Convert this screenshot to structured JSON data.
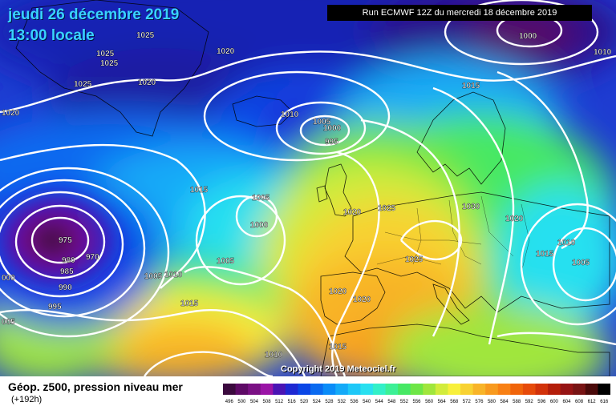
{
  "header": {
    "date": "jeudi 26 décembre 2019",
    "time": "13:00 locale",
    "run": "Run ECMWF 12Z du mercredi 18 décembre 2019"
  },
  "copyright": "Copyright 2019 Meteociel.fr",
  "legend": {
    "title": "Géop. z500, pression niveau mer",
    "subtitle": "(+192h)",
    "values": [
      "496",
      "500",
      "504",
      "508",
      "512",
      "516",
      "520",
      "524",
      "528",
      "532",
      "536",
      "540",
      "544",
      "548",
      "552",
      "556",
      "560",
      "564",
      "568",
      "572",
      "576",
      "580",
      "584",
      "588",
      "592",
      "596",
      "600",
      "604",
      "608",
      "612",
      "616"
    ],
    "colors": [
      "#3b0a3e",
      "#5e0a66",
      "#7a1084",
      "#9a14a6",
      "#4a14b4",
      "#1e28d2",
      "#0a46e6",
      "#0a6af0",
      "#0a8cf8",
      "#14aaf8",
      "#1ec8f8",
      "#28e0f0",
      "#32f0c8",
      "#3cf096",
      "#46e864",
      "#6ee646",
      "#a0e63c",
      "#d2ec3c",
      "#f8f03c",
      "#f8d232",
      "#f8b428",
      "#f89a1e",
      "#f88014",
      "#f0640a",
      "#e64a0a",
      "#d2320a",
      "#b41e0a",
      "#961414",
      "#781414",
      "#4a0a0a",
      "#000000"
    ]
  },
  "map_labels": [
    {
      "text": "1025"
    },
    {
      "text": "1025"
    },
    {
      "text": "1025"
    },
    {
      "text": "1025"
    },
    {
      "text": "1020"
    },
    {
      "text": "1020"
    },
    {
      "text": "1020"
    },
    {
      "text": "1000"
    },
    {
      "text": "1010"
    },
    {
      "text": "1015"
    },
    {
      "text": "1010"
    },
    {
      "text": "1005"
    },
    {
      "text": "1000"
    },
    {
      "text": "995"
    },
    {
      "text": "1015"
    },
    {
      "text": "1005"
    },
    {
      "text": "1000"
    },
    {
      "text": "1020"
    },
    {
      "text": "1025"
    },
    {
      "text": "1030"
    },
    {
      "text": "1020"
    },
    {
      "text": "975"
    },
    {
      "text": "970"
    },
    {
      "text": "980"
    },
    {
      "text": "985"
    },
    {
      "text": "990"
    },
    {
      "text": "995"
    },
    {
      "text": "000"
    },
    {
      "text": "005"
    },
    {
      "text": "1005"
    },
    {
      "text": "1005"
    },
    {
      "text": "1010"
    },
    {
      "text": "1025"
    },
    {
      "text": "1020"
    },
    {
      "text": "1020"
    },
    {
      "text": "1015"
    },
    {
      "text": "1015"
    },
    {
      "text": "1010"
    },
    {
      "text": "1010"
    },
    {
      "text": "1015"
    },
    {
      "text": "1005"
    }
  ]
}
